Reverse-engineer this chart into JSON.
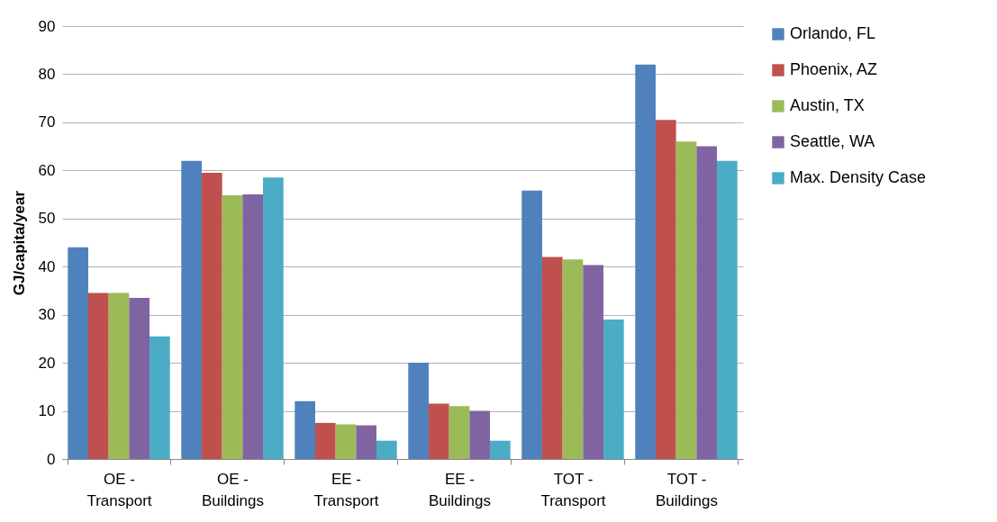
{
  "chart_data": {
    "type": "bar",
    "ylabel": "GJ/capita/year",
    "categories": [
      "OE - Transport",
      "OE - Buildings",
      "EE - Transport",
      "EE - Buildings",
      "TOT - Transport",
      "TOT - Buildings"
    ],
    "series": [
      {
        "name": "Orlando, FL",
        "color": "#4f81bd",
        "values": [
          44,
          62,
          12,
          20,
          55.8,
          82
        ]
      },
      {
        "name": "Phoenix, AZ",
        "color": "#c0504d",
        "values": [
          34.5,
          59.5,
          7.5,
          11.5,
          42,
          70.5
        ]
      },
      {
        "name": "Austin, TX",
        "color": "#9bbb59",
        "values": [
          34.5,
          54.8,
          7.2,
          11,
          41.5,
          66
        ]
      },
      {
        "name": "Seattle, WA",
        "color": "#8064a2",
        "values": [
          33.5,
          55,
          7,
          10,
          40.3,
          65
        ]
      },
      {
        "name": "Max. Density Case",
        "color": "#4bacc6",
        "values": [
          25.5,
          58.5,
          3.8,
          3.8,
          29,
          62
        ]
      }
    ],
    "ylim": [
      0,
      90
    ],
    "yticks": [
      0,
      10,
      20,
      30,
      40,
      50,
      60,
      70,
      80,
      90
    ],
    "grid": "y",
    "legend": "right"
  }
}
